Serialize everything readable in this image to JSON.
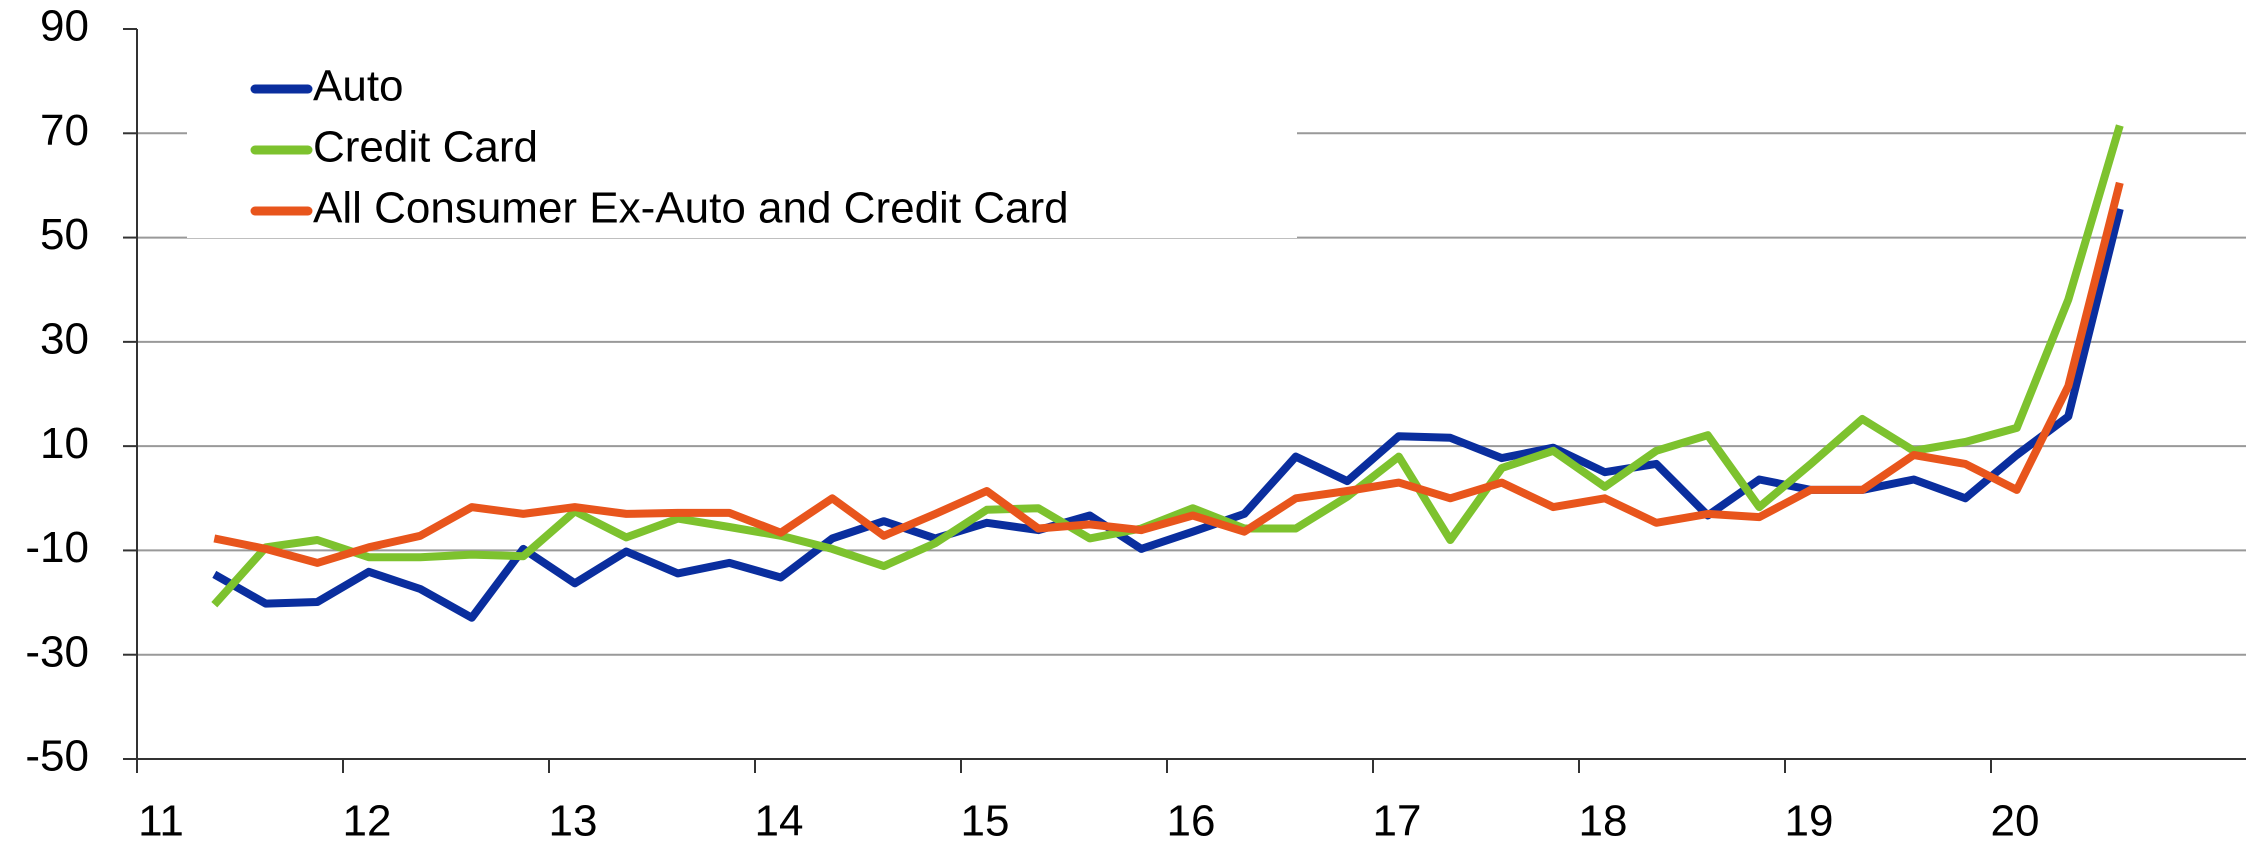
{
  "chart_data": {
    "type": "line",
    "x": [
      11.375,
      11.625,
      11.875,
      12.125,
      12.375,
      12.625,
      12.875,
      13.125,
      13.375,
      13.625,
      13.875,
      14.125,
      14.375,
      14.625,
      14.875,
      15.125,
      15.375,
      15.625,
      15.875,
      16.125,
      16.375,
      16.625,
      16.875,
      17.125,
      17.375,
      17.625,
      17.875,
      18.125,
      18.375,
      18.625,
      18.875,
      19.125,
      19.375,
      19.625,
      19.875,
      20.125,
      20.375,
      20.625
    ],
    "series": [
      {
        "name": "Auto",
        "color": "#0a2e9e",
        "values": [
          -14.6,
          -20.2,
          -19.9,
          -14.1,
          -17.4,
          -22.9,
          -9.7,
          -16.3,
          -10.2,
          -14.4,
          -12.4,
          -15.2,
          -7.7,
          -4.4,
          -7.7,
          -4.7,
          -6.1,
          -3.3,
          -9.7,
          -6.4,
          -3.0,
          8.0,
          3.3,
          11.9,
          11.6,
          7.7,
          9.7,
          5.0,
          6.6,
          -3.3,
          3.6,
          1.6,
          1.6,
          3.6,
          0,
          8.3,
          15.7,
          55.5
        ]
      },
      {
        "name": "Credit Card",
        "color": "#7dc22e",
        "values": [
          -20.4,
          -9.4,
          -8.0,
          -11.3,
          -11.3,
          -10.8,
          -11.1,
          -2.5,
          -7.5,
          -3.9,
          -5.5,
          -7.2,
          -9.7,
          -13.0,
          -8.6,
          -2.2,
          -1.9,
          -7.7,
          -5.8,
          -1.9,
          -5.8,
          -5.8,
          0.3,
          8.0,
          -8.0,
          5.8,
          9.1,
          2.2,
          9.1,
          12.1,
          -1.7,
          6.6,
          15.2,
          9.1,
          10.8,
          13.5,
          38.1,
          71.5
        ]
      },
      {
        "name": "All Consumer Ex-Auto and Credit Card",
        "color": "#e8551c",
        "values": [
          -7.7,
          -9.7,
          -12.4,
          -9.4,
          -7.2,
          -1.7,
          -3.0,
          -1.7,
          -3.0,
          -2.8,
          -2.8,
          -6.6,
          0,
          -7.2,
          -3.0,
          1.4,
          -5.8,
          -5.0,
          -6.1,
          -3.3,
          -6.4,
          0,
          1.4,
          3.0,
          0,
          3.0,
          -1.7,
          0,
          -4.7,
          -3.0,
          -3.6,
          1.6,
          1.6,
          8.3,
          6.6,
          1.6,
          21.5,
          60.5
        ]
      }
    ],
    "xlim": [
      11,
      21
    ],
    "xticks": [
      11,
      12,
      13,
      14,
      15,
      16,
      17,
      18,
      19,
      20
    ],
    "ylim": [
      -50,
      90
    ],
    "yticks": [
      -50,
      -30,
      -10,
      10,
      30,
      50,
      70,
      90
    ],
    "grid": true,
    "legend": "upper left"
  }
}
